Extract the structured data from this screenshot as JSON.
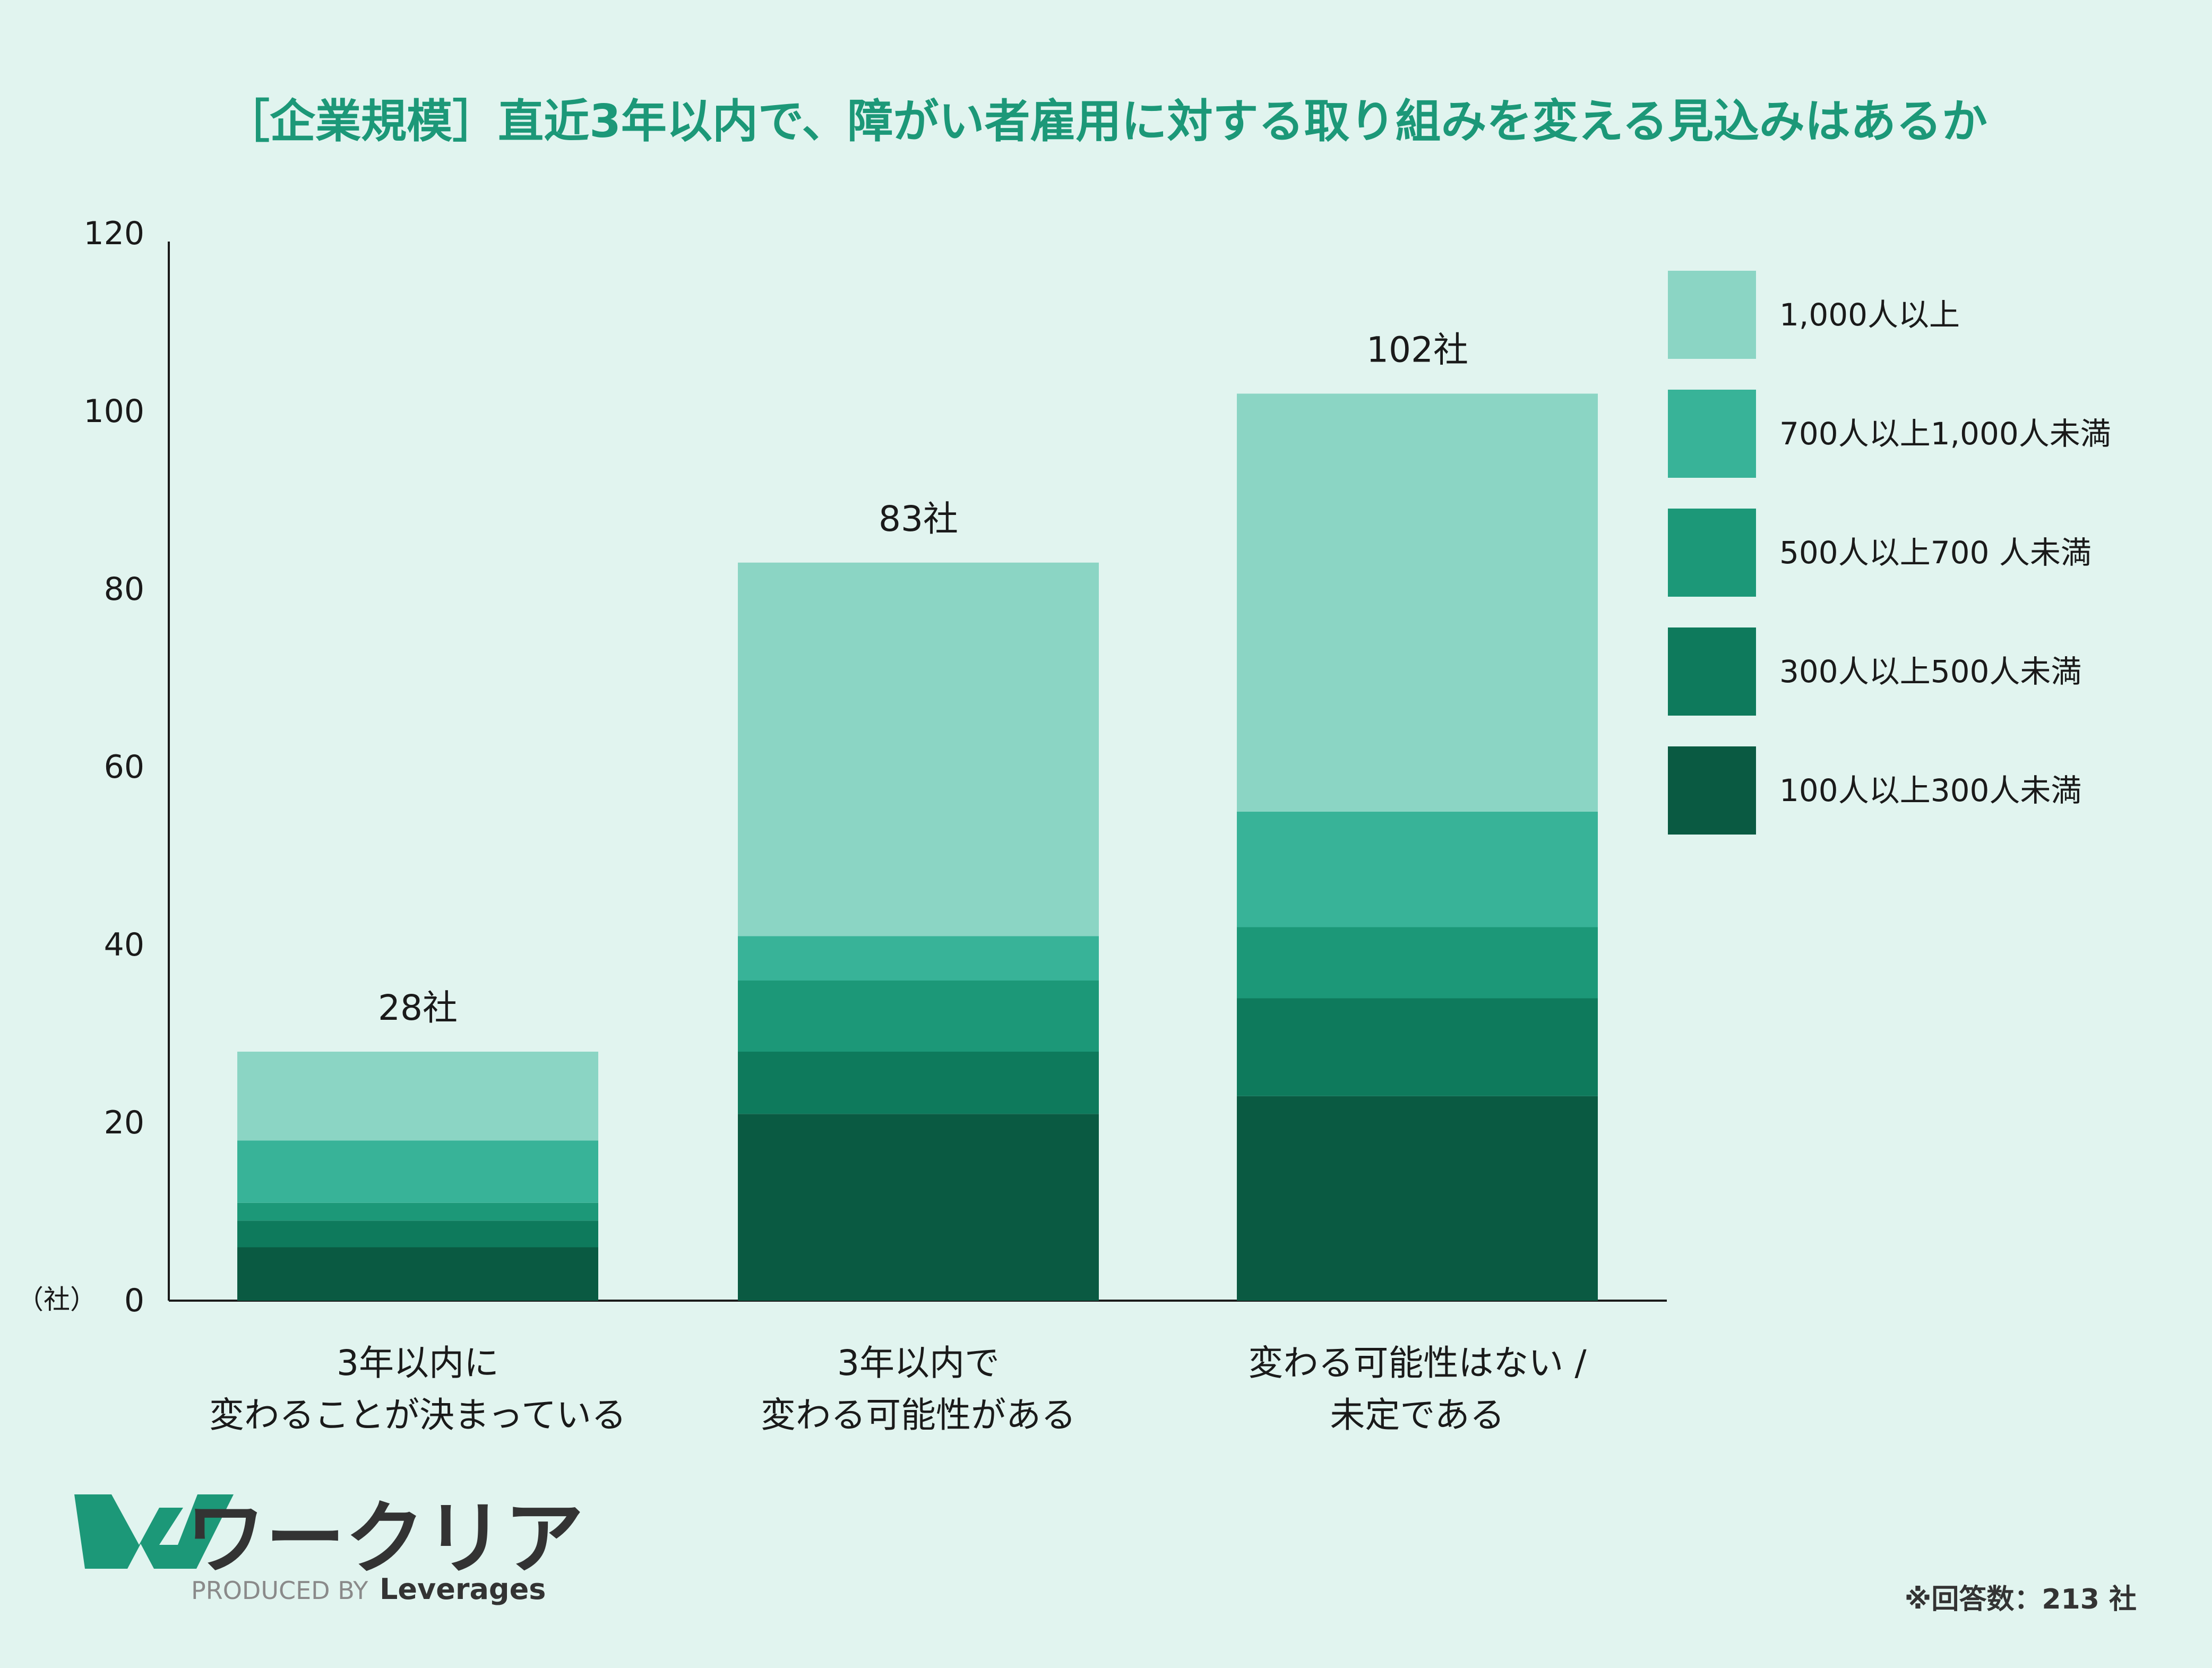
{
  "chart_data": {
    "type": "bar",
    "stacked": true,
    "title": "［企業規模］直近3年以内で、障がい者雇用に対する取り組みを変える見込みはあるか",
    "ylabel": "（社）",
    "ylim": [
      0,
      120
    ],
    "yticks": [
      0,
      20,
      40,
      60,
      80,
      100,
      120
    ],
    "grid": false,
    "legend_position": "right",
    "categories": [
      [
        "3年以内に",
        "変わることが決まっている"
      ],
      [
        "3年以内で",
        "変わる可能性がある"
      ],
      [
        "変わる可能性はない /",
        "未定である"
      ]
    ],
    "totals": [
      "28社",
      "83社",
      "102社"
    ],
    "series": [
      {
        "name": "100人以上300人未満",
        "color": "#0a5a42",
        "values": [
          6,
          21,
          23
        ]
      },
      {
        "name": "300人以上500人未満",
        "color": "#0e7a5c",
        "values": [
          3,
          7,
          11
        ]
      },
      {
        "name": "500人以上700 人未満",
        "color": "#1c9878",
        "values": [
          2,
          8,
          8
        ]
      },
      {
        "name": "700人以上1,000人未満",
        "color": "#38b398",
        "values": [
          7,
          5,
          13
        ]
      },
      {
        "name": "1,000人以上",
        "color": "#8bd5c4",
        "values": [
          10,
          42,
          47
        ]
      }
    ],
    "legend_order": [
      "1,000人以上",
      "700人以上1,000人未満",
      "500人以上700 人未満",
      "300人以上500人未満",
      "100人以上300人未満"
    ]
  },
  "colors": {
    "background": "#e1f4ef",
    "title": "#1c9878",
    "text": "#1a1a1a",
    "axis": "#1a1a1a",
    "logo_green": "#1c9878",
    "logo_dark": "#333333",
    "logo_gray": "#8a8a8a"
  },
  "footer": {
    "logo_text": "ワークリア",
    "produced_by": "PRODUCED BY",
    "brand": "Leverages",
    "note": "※回答数：213 社"
  }
}
